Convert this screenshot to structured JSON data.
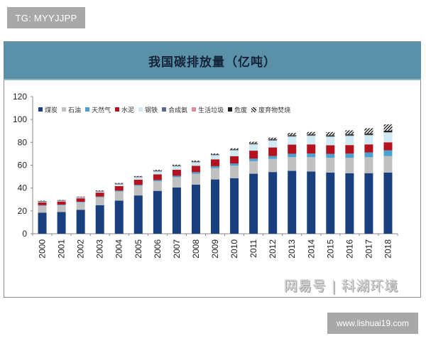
{
  "watermark_top": "TG: MYYJJPP",
  "watermark_url": "www.lishuai19.com",
  "watermark_source": "网易号 | 科湖环境",
  "chart_data": {
    "type": "bar",
    "stacked": true,
    "title": "我国碳排放量（亿吨）",
    "xlabel": "",
    "ylabel": "",
    "ylim": [
      0,
      120
    ],
    "yticks": [
      0,
      20,
      40,
      60,
      80,
      100,
      120
    ],
    "grid": false,
    "legend_position": "top",
    "categories": [
      "2000",
      "2001",
      "2002",
      "2003",
      "2004",
      "2005",
      "2006",
      "2007",
      "2008",
      "2009",
      "2010",
      "2011",
      "2012",
      "2013",
      "2014",
      "2015",
      "2016",
      "2017",
      "2018"
    ],
    "series": [
      {
        "name": "煤炭",
        "color": "#1a3f7f",
        "values": [
          18.5,
          19.0,
          21.0,
          25.0,
          29.0,
          33.5,
          37.5,
          40.5,
          43.0,
          47.5,
          48.5,
          52.5,
          54.0,
          55.0,
          54.5,
          53.5,
          53.0,
          53.0,
          53.5
        ]
      },
      {
        "name": "石油",
        "color": "#c0c0c0",
        "values": [
          6.0,
          6.0,
          6.5,
          7.0,
          8.0,
          8.5,
          8.5,
          9.0,
          9.5,
          10.0,
          11.0,
          11.0,
          11.5,
          12.0,
          12.5,
          13.0,
          13.5,
          14.0,
          14.5
        ]
      },
      {
        "name": "天然气",
        "color": "#4aa3cf",
        "values": [
          0.5,
          0.5,
          0.5,
          0.5,
          0.7,
          0.8,
          1.0,
          1.2,
          1.4,
          1.6,
          1.9,
          2.2,
          2.5,
          3.0,
          3.2,
          3.4,
          3.6,
          4.2,
          5.0
        ]
      },
      {
        "name": "水泥",
        "color": "#b3121e",
        "values": [
          2.5,
          2.7,
          3.0,
          3.5,
          4.0,
          4.5,
          5.0,
          5.3,
          5.5,
          6.0,
          6.5,
          7.0,
          7.5,
          8.0,
          8.0,
          7.5,
          7.5,
          7.0,
          7.0
        ]
      },
      {
        "name": "钢铁",
        "color": "#cfeaf2",
        "values": [
          0.5,
          0.5,
          0.6,
          0.8,
          1.5,
          2.0,
          2.5,
          3.0,
          3.0,
          3.5,
          5.0,
          5.5,
          6.0,
          7.0,
          7.5,
          7.5,
          8.0,
          8.0,
          8.5
        ]
      },
      {
        "name": "合成氨",
        "color": "#5a6a8a",
        "values": [
          0.3,
          0.3,
          0.3,
          0.3,
          0.3,
          0.3,
          0.3,
          0.3,
          0.3,
          0.3,
          0.3,
          0.3,
          0.3,
          0.3,
          0.3,
          0.3,
          0.3,
          0.3,
          0.3
        ]
      },
      {
        "name": "生活垃圾",
        "color": "#e08aa0",
        "values": [
          0.1,
          0.1,
          0.1,
          0.1,
          0.1,
          0.1,
          0.1,
          0.1,
          0.1,
          0.1,
          0.1,
          0.1,
          0.1,
          0.1,
          0.1,
          0.1,
          0.1,
          0.1,
          0.1
        ]
      },
      {
        "name": "危废",
        "color": "#222222",
        "values": [
          0.2,
          0.2,
          0.2,
          0.3,
          0.3,
          0.3,
          0.4,
          0.4,
          0.4,
          0.4,
          0.5,
          0.6,
          0.7,
          0.8,
          0.8,
          0.9,
          1.0,
          1.2,
          1.3
        ]
      },
      {
        "name": "废弃物焚烧",
        "color": "hatch",
        "values": [
          0.3,
          0.3,
          0.3,
          0.4,
          0.5,
          0.5,
          0.6,
          0.7,
          0.8,
          0.8,
          1.0,
          1.3,
          1.5,
          2.0,
          2.2,
          2.8,
          3.5,
          4.5,
          5.5
        ]
      }
    ]
  }
}
